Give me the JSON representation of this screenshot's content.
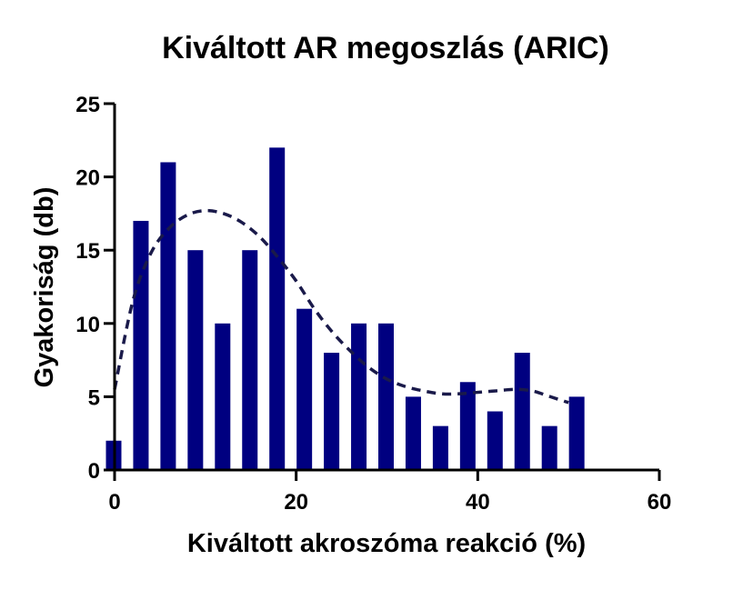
{
  "chart_data": {
    "type": "bar",
    "title": "Kiváltott AR megoszlás (ARIC)",
    "xlabel": "Kiváltott akroszóma reakció (%)",
    "ylabel": "Gyakoriság (db)",
    "xlim": [
      0,
      60
    ],
    "ylim": [
      0,
      25
    ],
    "x_ticks": [
      "0",
      "20",
      "40",
      "60"
    ],
    "y_ticks": [
      "0",
      "5",
      "10",
      "15",
      "20",
      "25"
    ],
    "bar_color": "#000080",
    "grid": false,
    "legend": "none",
    "series": [
      {
        "type": "bar",
        "x": [
          0,
          3,
          6,
          9,
          12,
          15,
          18,
          21,
          24,
          27,
          30,
          33,
          36,
          39,
          42,
          45,
          48,
          51
        ],
        "values": [
          2,
          17,
          21,
          15,
          10,
          15,
          22,
          11,
          8,
          10,
          10,
          5,
          3,
          6,
          4,
          8,
          3,
          5
        ]
      },
      {
        "type": "line",
        "style": "dashed",
        "color": "#1a1a4a",
        "x": [
          0,
          2,
          4,
          6,
          8,
          10,
          12,
          14,
          16,
          18,
          20,
          22,
          24,
          26,
          28,
          30,
          32,
          34,
          36,
          38,
          40,
          42,
          44,
          46,
          48,
          50
        ],
        "values": [
          5.5,
          11.5,
          14.8,
          16.5,
          17.4,
          17.7,
          17.5,
          16.9,
          15.9,
          14.5,
          12.9,
          11.0,
          9.4,
          8.1,
          7.0,
          6.2,
          5.7,
          5.4,
          5.2,
          5.2,
          5.3,
          5.4,
          5.5,
          5.4,
          5.0,
          4.6
        ]
      }
    ]
  }
}
